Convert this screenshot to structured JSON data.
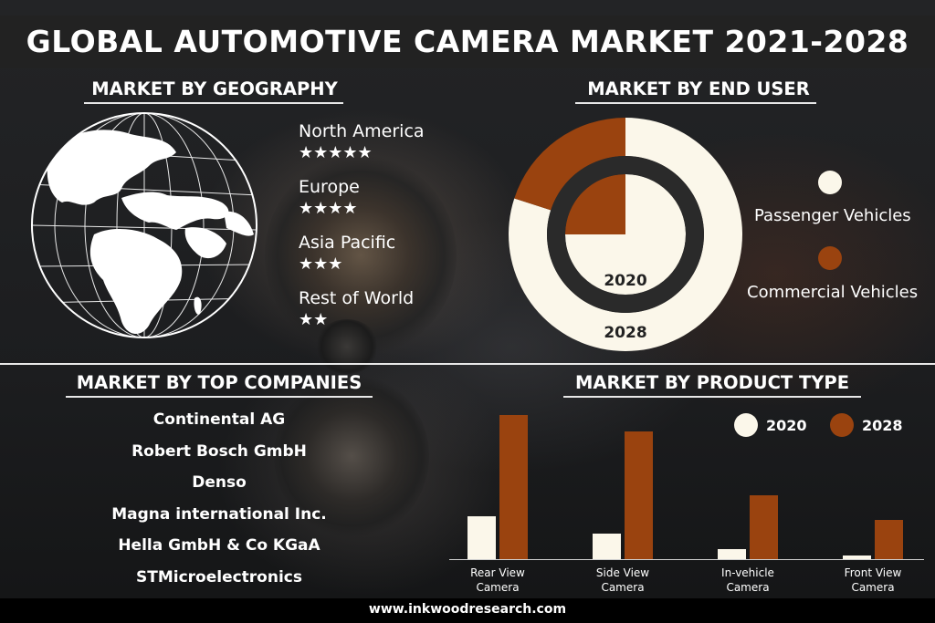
{
  "title": "GLOBAL AUTOMOTIVE CAMERA MARKET 2021-2028",
  "footer": "www.inkwoodresearch.com",
  "colors": {
    "cream": "#fbf7ea",
    "rust": "#9a430f",
    "background": "#1c1d1f"
  },
  "geography": {
    "heading": "MARKET BY GEOGRAPHY",
    "regions": [
      {
        "name": "North America",
        "stars": "★★★★★",
        "rating": 5
      },
      {
        "name": "Europe",
        "stars": "★★★★",
        "rating": 4
      },
      {
        "name": "Asia Pacific",
        "stars": "★★★",
        "rating": 3
      },
      {
        "name": "Rest of World",
        "stars": "★★",
        "rating": 2
      }
    ],
    "icon": "globe-icon"
  },
  "end_user": {
    "heading": "MARKET BY END USER",
    "legend": [
      "Passenger Vehicles",
      "Commercial Vehicles"
    ],
    "inner_label": "2020",
    "outer_label": "2028"
  },
  "companies": {
    "heading": "MARKET BY TOP COMPANIES",
    "items": [
      "Continental AG",
      "Robert Bosch GmbH",
      "Denso",
      "Magna international Inc.",
      "Hella GmbH & Co KGaA",
      "STMicroelectronics"
    ]
  },
  "product": {
    "heading": "MARKET BY PRODUCT  TYPE"
  },
  "chart_data": [
    {
      "type": "pie",
      "title": "MARKET BY END USER",
      "categories": [
        "Passenger Vehicles",
        "Commercial Vehicles"
      ],
      "series": [
        {
          "name": "2020",
          "values": [
            75,
            25
          ]
        },
        {
          "name": "2028",
          "values": [
            80,
            20
          ]
        }
      ]
    },
    {
      "type": "bar",
      "title": "MARKET BY PRODUCT  TYPE",
      "categories": [
        "Rear View Camera",
        "Side View Camera",
        "In-vehicle Camera",
        "Front View Camera"
      ],
      "category_lines": [
        [
          "Rear View",
          "Camera"
        ],
        [
          "Side View",
          "Camera"
        ],
        [
          "In-vehicle",
          "Camera"
        ],
        [
          "Front View",
          "Camera"
        ]
      ],
      "series": [
        {
          "name": "2020",
          "values": [
            47,
            28,
            11,
            4
          ],
          "color": "#fbf7ea"
        },
        {
          "name": "2028",
          "values": [
            158,
            140,
            70,
            43
          ],
          "color": "#9a430f"
        }
      ],
      "ylim": [
        0,
        165
      ],
      "legend": "top-right"
    }
  ]
}
